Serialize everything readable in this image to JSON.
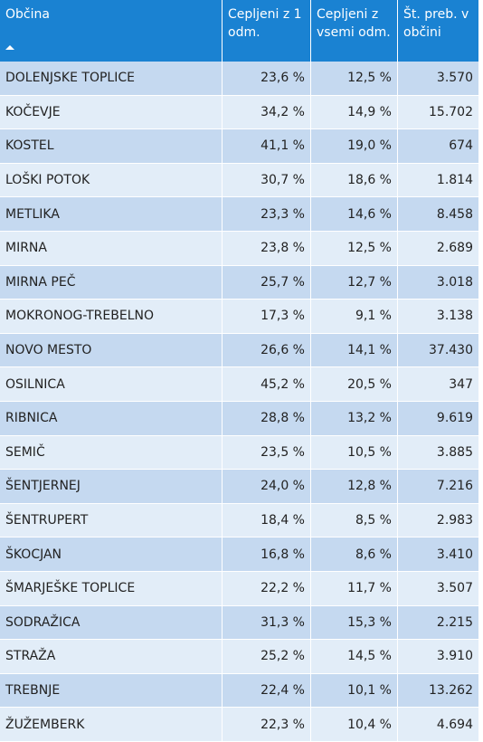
{
  "table": {
    "headers": [
      "Občina",
      "Cepljeni z 1 odm.",
      "Cepljeni z vsemi odm.",
      "Št. preb. v občini"
    ],
    "rows": [
      [
        "DOLENJSKE TOPLICE",
        "23,6 %",
        "12,5 %",
        "3.570"
      ],
      [
        "KOČEVJE",
        "34,2 %",
        "14,9 %",
        "15.702"
      ],
      [
        "KOSTEL",
        "41,1 %",
        "19,0 %",
        "674"
      ],
      [
        "LOŠKI POTOK",
        "30,7 %",
        "18,6 %",
        "1.814"
      ],
      [
        "METLIKA",
        "23,3 %",
        "14,6 %",
        "8.458"
      ],
      [
        "MIRNA",
        "23,8 %",
        "12,5 %",
        "2.689"
      ],
      [
        "MIRNA PEČ",
        "25,7 %",
        "12,7 %",
        "3.018"
      ],
      [
        "MOKRONOG-TREBELNO",
        "17,3 %",
        "9,1 %",
        "3.138"
      ],
      [
        "NOVO MESTO",
        "26,6 %",
        "14,1 %",
        "37.430"
      ],
      [
        "OSILNICA",
        "45,2 %",
        "20,5 %",
        "347"
      ],
      [
        "RIBNICA",
        "28,8 %",
        "13,2 %",
        "9.619"
      ],
      [
        "SEMIČ",
        "23,5 %",
        "10,5 %",
        "3.885"
      ],
      [
        "ŠENTJERNEJ",
        "24,0 %",
        "12,8 %",
        "7.216"
      ],
      [
        "ŠENTRUPERT",
        "18,4 %",
        "8,5 %",
        "2.983"
      ],
      [
        "ŠKOCJAN",
        "16,8 %",
        "8,6 %",
        "3.410"
      ],
      [
        "ŠMARJEŠKE TOPLICE",
        "22,2 %",
        "11,7 %",
        "3.507"
      ],
      [
        "SODRAŽICA",
        "31,3 %",
        "15,3 %",
        "2.215"
      ],
      [
        "STRAŽA",
        "25,2 %",
        "14,5 %",
        "3.910"
      ],
      [
        "TREBNJE",
        "22,4 %",
        "10,1 %",
        "13.262"
      ],
      [
        "ŽUŽEMBERK",
        "22,3 %",
        "10,4 %",
        "4.694"
      ]
    ]
  },
  "colors": {
    "header_bg": "#1a82d2",
    "row_odd": "#c5d9f0",
    "row_even": "#e2edf8"
  },
  "icons": {
    "sort": "sort-ascending-icon"
  }
}
